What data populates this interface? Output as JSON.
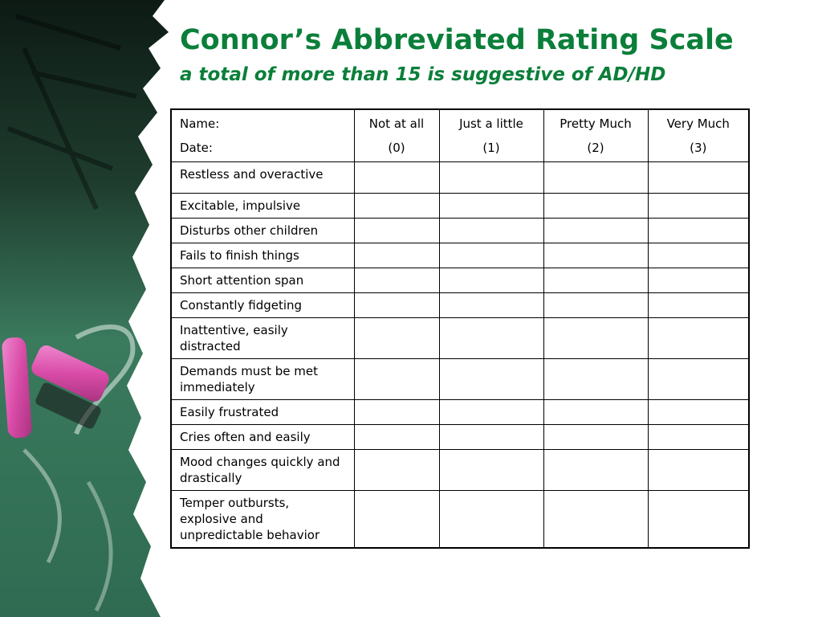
{
  "slide": {
    "title": "Connor’s Abbreviated Rating Scale",
    "subtitle": "a total of more than 15 is suggestive of AD/HD"
  },
  "table": {
    "header": {
      "name_label": "Name:",
      "date_label": "Date:",
      "columns": [
        {
          "label": "Not at all",
          "score": "(0)"
        },
        {
          "label": "Just a little",
          "score": "(1)"
        },
        {
          "label": "Pretty Much",
          "score": "(2)"
        },
        {
          "label": "Very Much",
          "score": "(3)"
        }
      ]
    },
    "items": [
      "Restless and overactive",
      "Excitable, impulsive",
      "Disturbs other children",
      "Fails to finish things",
      "Short attention span",
      "Constantly fidgeting",
      "Inattentive, easily distracted",
      "Demands must be met immediately",
      "Easily frustrated",
      "Cries often and easily",
      "Mood changes quickly and drastically",
      "Temper outbursts, explosive and unpredictable behavior"
    ]
  },
  "colors": {
    "title": "#0b7f3a",
    "chalkboard": "#2f6b52",
    "chalk_pink": "#d94ca8"
  }
}
